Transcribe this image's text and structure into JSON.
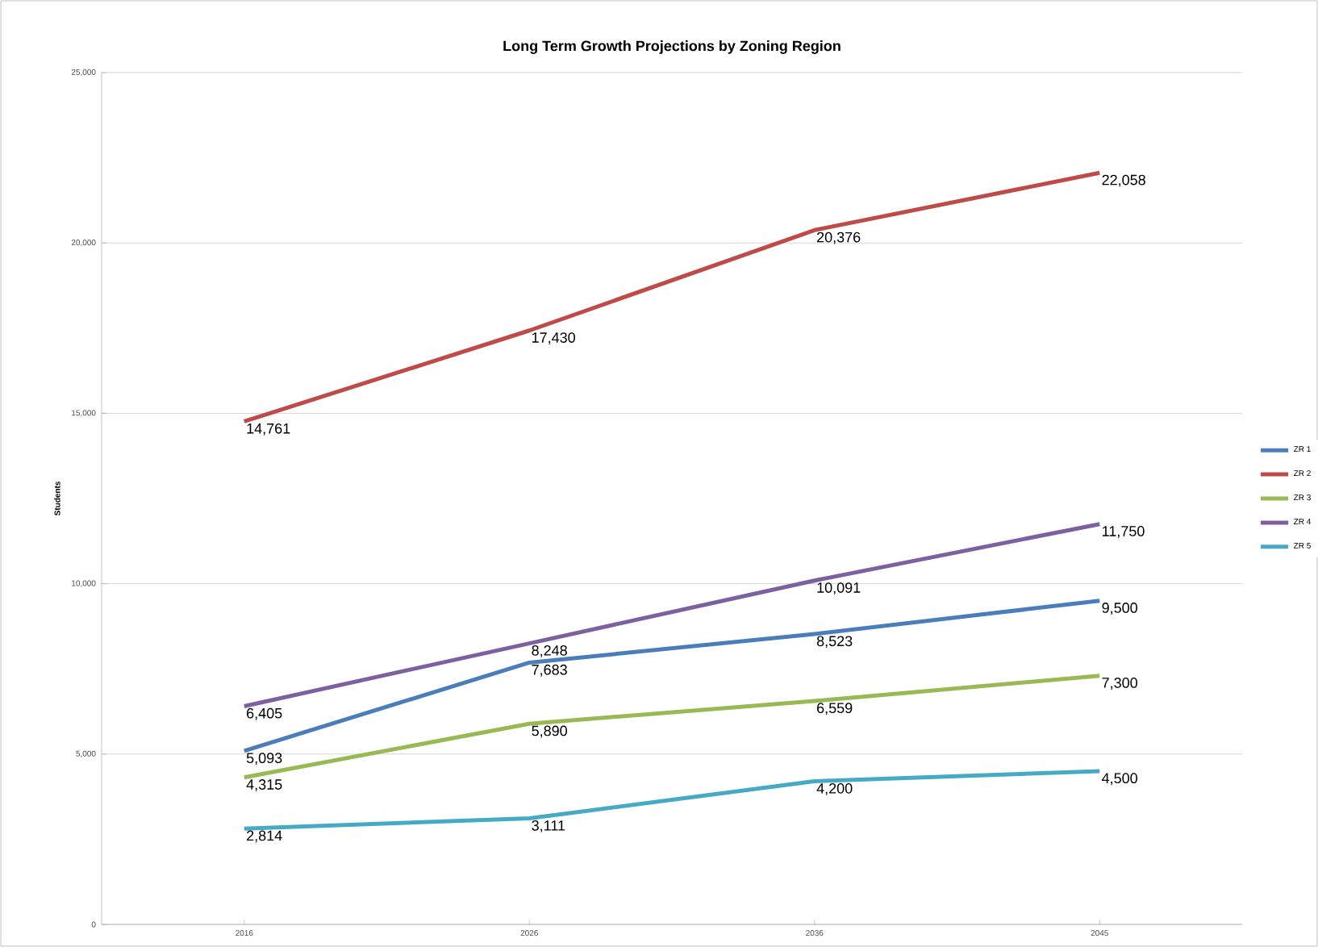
{
  "chart_data": {
    "type": "line",
    "title": "Long Term Growth Projections by Zoning Region",
    "ylabel": "Students",
    "categories": [
      "2016",
      "2026",
      "2036",
      "2045"
    ],
    "series": [
      {
        "name": "ZR 1",
        "color": "#4a7ebb",
        "values": [
          5093,
          7683,
          8523,
          9500
        ],
        "value_labels": [
          "5,093",
          "7,683",
          "8,523",
          "9,500"
        ]
      },
      {
        "name": "ZR 2",
        "color": "#be4b48",
        "values": [
          14761,
          17430,
          20376,
          22058
        ],
        "value_labels": [
          "14,761",
          "17,430",
          "20,376",
          "22,058"
        ]
      },
      {
        "name": "ZR 3",
        "color": "#98b954",
        "values": [
          4315,
          5890,
          6559,
          7300
        ],
        "value_labels": [
          "4,315",
          "5,890",
          "6,559",
          "7,300"
        ]
      },
      {
        "name": "ZR 4",
        "color": "#7d60a0",
        "values": [
          6405,
          8248,
          10091,
          11750
        ],
        "value_labels": [
          "6,405",
          "8,248",
          "10,091",
          "11,750"
        ]
      },
      {
        "name": "ZR 5",
        "color": "#46aac5",
        "values": [
          2814,
          3111,
          4200,
          4500
        ],
        "value_labels": [
          "2,814",
          "3,111",
          "4,200",
          "4,500"
        ]
      }
    ],
    "ylim": [
      0,
      25000
    ],
    "yticks": [
      {
        "value": 0,
        "label": "0"
      },
      {
        "value": 5000,
        "label": "5,000"
      },
      {
        "value": 10000,
        "label": "10,000"
      },
      {
        "value": 15000,
        "label": "15,000"
      },
      {
        "value": 20000,
        "label": "20,000"
      },
      {
        "value": 25000,
        "label": "25,000"
      }
    ],
    "grid": "y",
    "legend": "right",
    "marker": "none",
    "line_style": "solid"
  }
}
